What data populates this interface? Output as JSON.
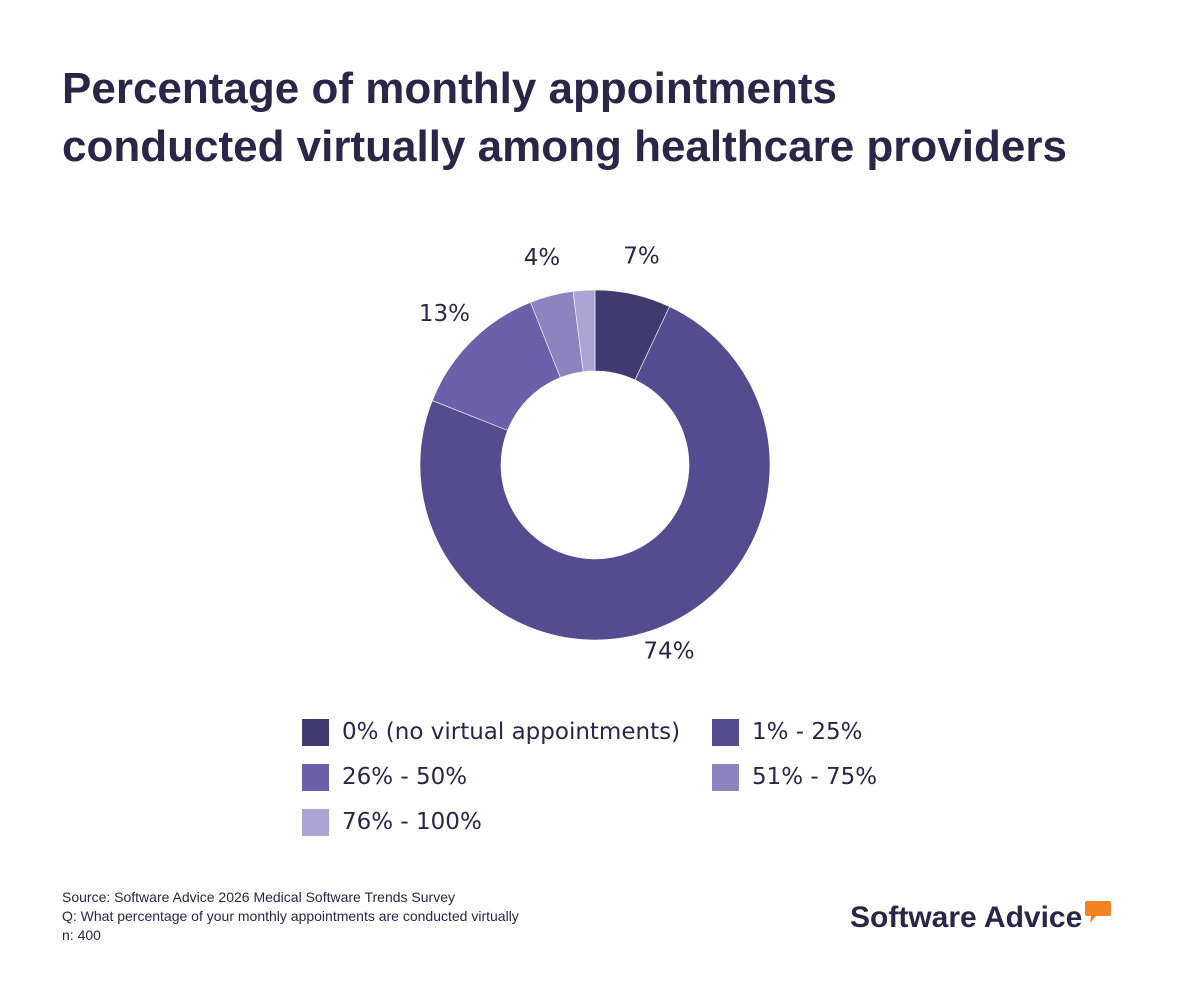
{
  "title_lines": [
    "Percentage of monthly appointments",
    "conducted virtually among healthcare providers"
  ],
  "chart_data": {
    "type": "pie",
    "variant": "donut",
    "title": "Percentage of monthly appointments conducted virtually among healthcare providers",
    "categories": [
      "0% (no virtual appointments)",
      "1% - 25%",
      "26% - 50%",
      "51% - 75%",
      "76% - 100%"
    ],
    "values": [
      7,
      74,
      13,
      4,
      2
    ],
    "data_labels": [
      "7%",
      "74%",
      "13%",
      "4%",
      ""
    ],
    "colors": [
      "#413a6e",
      "#554b8f",
      "#6c60ab",
      "#8d83bf",
      "#aca5d4"
    ],
    "legend_position": "bottom"
  },
  "footnotes": {
    "source": "Source: Software Advice 2026 Medical Software Trends Survey",
    "question": "Q: What percentage of your monthly appointments are conducted virtually",
    "sample": "n: 400"
  },
  "brand": {
    "name": "Software Advice",
    "bubble_color": "#f58220",
    "icon": "speech-bubble-icon"
  }
}
